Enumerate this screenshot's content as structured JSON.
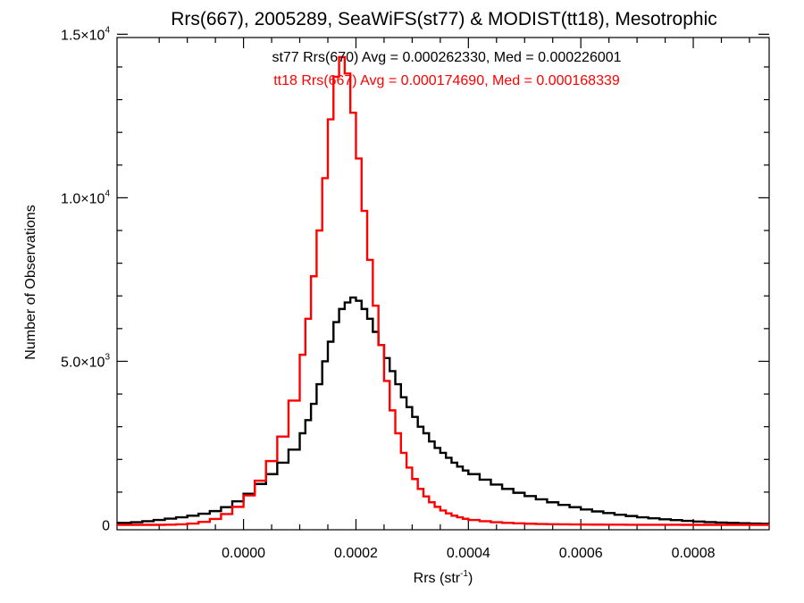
{
  "chart_data": {
    "type": "line",
    "title": "Rrs(667), 2005289, SeaWiFS(st77) & MODIST(tt18), Mesotrophic",
    "xlabel": "Rrs (str",
    "xlabel_sup": "-1",
    "xlabel_close": ")",
    "ylabel": "Number of Observations",
    "xlim": [
      -0.000225,
      0.000935
    ],
    "ylim": [
      -150,
      14900
    ],
    "x_ticks": [
      {
        "value": 0.0,
        "label": "0.0000"
      },
      {
        "value": 0.0002,
        "label": "0.0002"
      },
      {
        "value": 0.0004,
        "label": "0.0004"
      },
      {
        "value": 0.0006,
        "label": "0.0006"
      },
      {
        "value": 0.0008,
        "label": "0.0008"
      }
    ],
    "y_ticks": [
      {
        "value": 0,
        "mant": "0",
        "exp": ""
      },
      {
        "value": 5000,
        "mant": "5.0×10",
        "exp": "3"
      },
      {
        "value": 10000,
        "mant": "1.0×10",
        "exp": "4"
      },
      {
        "value": 15000,
        "mant": "1.5×10",
        "exp": "4"
      }
    ],
    "grid": false,
    "annotations": [
      {
        "text": "st77 Rrs(670) Avg = 0.000262330, Med = 0.000226001",
        "color": "#000000"
      },
      {
        "text": "tt18 Rrs(667) Avg = 0.000174690, Med = 0.000168339",
        "color": "#ff0000"
      }
    ],
    "series": [
      {
        "name": "st77 Rrs(670)",
        "color": "#000000",
        "step": "post",
        "x": [
          -0.000225,
          -0.0002,
          -0.00018,
          -0.00016,
          -0.00014,
          -0.00012,
          -0.0001,
          -8e-05,
          -6e-05,
          -4e-05,
          -2e-05,
          0.0,
          2e-05,
          4e-05,
          6e-05,
          8e-05,
          0.0001,
          0.00011,
          0.00012,
          0.00013,
          0.00014,
          0.00015,
          0.00016,
          0.00017,
          0.00018,
          0.00019,
          0.0002,
          0.00021,
          0.00022,
          0.00023,
          0.00024,
          0.00025,
          0.00026,
          0.00027,
          0.00028,
          0.00029,
          0.0003,
          0.00031,
          0.00032,
          0.00033,
          0.00034,
          0.00035,
          0.00036,
          0.00037,
          0.00038,
          0.00039,
          0.0004,
          0.00042,
          0.00044,
          0.00046,
          0.00048,
          0.0005,
          0.00052,
          0.00054,
          0.00056,
          0.00058,
          0.0006,
          0.00062,
          0.00064,
          0.00066,
          0.00068,
          0.0007,
          0.00072,
          0.00074,
          0.00076,
          0.00078,
          0.0008,
          0.00082,
          0.00084,
          0.00086,
          0.00088,
          0.0009,
          0.00092
        ],
        "y": [
          60,
          80,
          110,
          150,
          190,
          230,
          280,
          340,
          420,
          540,
          720,
          950,
          1250,
          1550,
          1900,
          2300,
          2800,
          3200,
          3700,
          4300,
          5000,
          5600,
          6200,
          6600,
          6800,
          6950,
          6850,
          6600,
          6300,
          5900,
          5500,
          5100,
          4700,
          4300,
          3900,
          3600,
          3300,
          3000,
          2800,
          2550,
          2350,
          2200,
          2050,
          1900,
          1780,
          1660,
          1550,
          1380,
          1230,
          1100,
          980,
          880,
          780,
          690,
          610,
          540,
          470,
          410,
          360,
          310,
          270,
          230,
          200,
          170,
          145,
          120,
          100,
          85,
          70,
          58,
          48,
          40,
          32
        ]
      },
      {
        "name": "tt18 Rrs(667)",
        "color": "#ff0000",
        "step": "post",
        "x": [
          -0.000225,
          -0.0002,
          -0.00018,
          -0.00016,
          -0.00014,
          -0.00012,
          -0.0001,
          -8e-05,
          -6e-05,
          -4e-05,
          -2e-05,
          0.0,
          2e-05,
          4e-05,
          6e-05,
          8e-05,
          0.0001,
          0.00011,
          0.00012,
          0.00013,
          0.00014,
          0.00015,
          0.00016,
          0.00017,
          0.00018,
          0.00019,
          0.0002,
          0.00021,
          0.00022,
          0.00023,
          0.00024,
          0.00025,
          0.00026,
          0.00027,
          0.00028,
          0.00029,
          0.0003,
          0.00031,
          0.00032,
          0.00033,
          0.00034,
          0.00035,
          0.00036,
          0.00037,
          0.00038,
          0.00039,
          0.0004,
          0.00042,
          0.00044,
          0.00046,
          0.00048,
          0.0005,
          0.00052,
          0.00054,
          0.00056,
          0.00058,
          0.0006,
          0.00062,
          0.00064,
          0.00066,
          0.00068,
          0.0007,
          0.00072,
          0.00074,
          0.00076,
          0.00078,
          0.0008,
          0.00082,
          0.00084,
          0.00086,
          0.00088,
          0.0009,
          0.00092
        ],
        "y": [
          0,
          0,
          0,
          0,
          5,
          15,
          40,
          90,
          180,
          330,
          550,
          900,
          1350,
          1950,
          2700,
          3800,
          5200,
          6300,
          7600,
          9000,
          10600,
          12400,
          13700,
          14300,
          13800,
          12600,
          11200,
          9600,
          8100,
          6700,
          5500,
          4400,
          3500,
          2800,
          2200,
          1750,
          1400,
          1100,
          870,
          690,
          550,
          440,
          350,
          280,
          230,
          185,
          150,
          110,
          80,
          60,
          45,
          34,
          26,
          20,
          15,
          12,
          9,
          7,
          5,
          4,
          3,
          2,
          2,
          1,
          1,
          0,
          0,
          0,
          0,
          0,
          0,
          0,
          0
        ]
      }
    ]
  }
}
